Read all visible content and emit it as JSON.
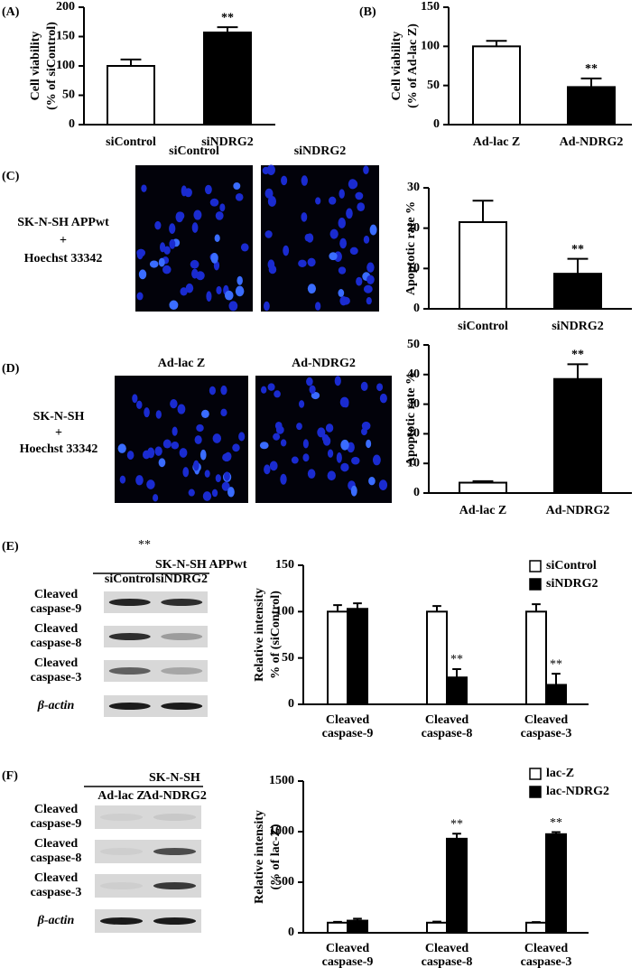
{
  "chart_data": [
    {
      "type": "bar",
      "panel_label": "(A)",
      "ylabel": [
        "Cell viability",
        "(% of siControl)"
      ],
      "categories": [
        "siControl",
        "siNDRG2"
      ],
      "values": [
        100,
        157
      ],
      "errors": [
        11,
        9
      ],
      "colors": [
        "#ffffff",
        "#000000"
      ],
      "ylim": [
        0,
        200
      ],
      "yticks": [
        0,
        50,
        100,
        150,
        200
      ],
      "annotations": [
        {
          "category": "siNDRG2",
          "text": "**"
        }
      ]
    },
    {
      "type": "bar",
      "panel_label": "(B)",
      "ylabel": [
        "Cell viability",
        "(% of Ad-lac Z)"
      ],
      "categories": [
        "Ad-lac Z",
        "Ad-NDRG2"
      ],
      "values": [
        100,
        48
      ],
      "errors": [
        7,
        11
      ],
      "colors": [
        "#ffffff",
        "#000000"
      ],
      "ylim": [
        0,
        150
      ],
      "yticks": [
        0,
        50,
        100,
        150
      ],
      "annotations": [
        {
          "category": "Ad-NDRG2",
          "text": "**"
        }
      ]
    },
    {
      "type": "bar",
      "panel_label": "(C)",
      "ylabel": [
        "Apoptotic rate %"
      ],
      "categories": [
        "siControl",
        "siNDRG2"
      ],
      "values": [
        21.5,
        8.7
      ],
      "errors": [
        5.3,
        3.7
      ],
      "colors": [
        "#ffffff",
        "#000000"
      ],
      "ylim": [
        0,
        30
      ],
      "yticks": [
        0,
        10,
        20,
        30
      ],
      "annotations": [
        {
          "category": "siNDRG2",
          "text": "**"
        }
      ]
    },
    {
      "type": "bar",
      "panel_label": "(D)",
      "ylabel": [
        "Apoptotic rate %"
      ],
      "categories": [
        "Ad-lac Z",
        "Ad-NDRG2"
      ],
      "values": [
        3.5,
        38.5
      ],
      "errors": [
        0.5,
        5
      ],
      "colors": [
        "#ffffff",
        "#000000"
      ],
      "ylim": [
        0,
        50
      ],
      "yticks": [
        0,
        10,
        20,
        30,
        40,
        50
      ],
      "annotations": [
        {
          "category": "Ad-NDRG2",
          "text": "**"
        }
      ]
    },
    {
      "type": "grouped-bar",
      "panel_label": "(E)",
      "ylabel": [
        "Relative intensity",
        "% of (siControl)"
      ],
      "categories": [
        [
          "Cleaved",
          "caspase-9"
        ],
        [
          "Cleaved",
          "caspase-8"
        ],
        [
          "Cleaved",
          "caspase-3"
        ]
      ],
      "series": [
        {
          "name": "siControl",
          "color": "#ffffff",
          "values": [
            100,
            100,
            100
          ],
          "errors": [
            7,
            6,
            8
          ]
        },
        {
          "name": "siNDRG2",
          "color": "#000000",
          "values": [
            103,
            29,
            21
          ],
          "errors": [
            6,
            9,
            12
          ]
        }
      ],
      "ylim": [
        0,
        150
      ],
      "yticks": [
        0,
        50,
        100,
        150
      ],
      "annotations": [
        {
          "category": 1,
          "series": "siNDRG2",
          "text": "**"
        },
        {
          "category": 2,
          "series": "siNDRG2",
          "text": "**"
        }
      ]
    },
    {
      "type": "grouped-bar",
      "panel_label": "(F)",
      "ylabel": [
        "Relative intensity",
        "(% of lac-Z)"
      ],
      "categories": [
        [
          "Cleaved",
          "caspase-9"
        ],
        [
          "Cleaved",
          "caspase-8"
        ],
        [
          "Cleaved",
          "caspase-3"
        ]
      ],
      "series": [
        {
          "name": "lac-Z",
          "color": "#ffffff",
          "values": [
            100,
            100,
            100
          ],
          "errors": [
            8,
            10,
            6
          ]
        },
        {
          "name": "lac-NDRG2",
          "color": "#000000",
          "values": [
            120,
            930,
            975
          ],
          "errors": [
            20,
            50,
            20
          ]
        }
      ],
      "ylim": [
        0,
        1500
      ],
      "yticks": [
        0,
        500,
        1000,
        1500
      ],
      "annotations": [
        {
          "category": 1,
          "series": "lac-NDRG2",
          "text": "**"
        },
        {
          "category": 2,
          "series": "lac-NDRG2",
          "text": "**"
        }
      ]
    }
  ],
  "micrographs": [
    {
      "labels": [
        "siControl",
        "siNDRG2"
      ],
      "caption": [
        "SK-N-SH APPwt",
        "+",
        "Hoechst 33342"
      ]
    },
    {
      "labels": [
        "Ad-lac Z",
        "Ad-NDRG2"
      ],
      "caption": [
        "SK-N-SH",
        "+",
        "Hoechst 33342"
      ]
    }
  ],
  "blots": [
    {
      "mark": "**",
      "title": "SK-N-SH APPwt",
      "lanes": [
        "siControl",
        "siNDRG2"
      ],
      "rows": [
        [
          "Cleaved",
          "caspase-9"
        ],
        [
          "Cleaved",
          "caspase-8"
        ],
        [
          "Cleaved",
          "caspase-3"
        ],
        [
          "β-actin"
        ]
      ]
    },
    {
      "title": "SK-N-SH",
      "lanes": [
        "Ad-lac Z",
        "Ad-NDRG2"
      ],
      "rows": [
        [
          "Cleaved",
          "caspase-9"
        ],
        [
          "Cleaved",
          "caspase-8"
        ],
        [
          "Cleaved",
          "caspase-3"
        ],
        [
          "β-actin"
        ]
      ]
    }
  ]
}
